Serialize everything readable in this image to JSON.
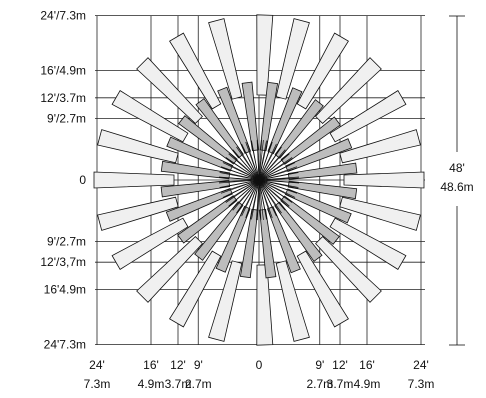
{
  "colors": {
    "line": "#111111",
    "grid": "#222222",
    "zone_outer": "#f0f0f0",
    "zone_inner": "#bdbdbd",
    "background": "#ffffff"
  },
  "y_labels": [
    {
      "text": "24'/7.3m",
      "ft": 24,
      "dir": -1
    },
    {
      "text": "16'/4.9m",
      "ft": 16,
      "dir": -1
    },
    {
      "text": "12'/3.7m",
      "ft": 12,
      "dir": -1
    },
    {
      "text": "9'/2.7m",
      "ft": 9,
      "dir": -1
    },
    {
      "text": "0",
      "ft": 0,
      "dir": 0
    },
    {
      "text": "9'/2.7m",
      "ft": 9,
      "dir": 1
    },
    {
      "text": "12'/3,7m",
      "ft": 12,
      "dir": 1
    },
    {
      "text": "16'4.9m",
      "ft": 16,
      "dir": 1
    },
    {
      "text": "24'7.3m",
      "ft": 24,
      "dir": 1
    }
  ],
  "x_labels": [
    {
      "ft_text": "24'",
      "m_text": "7.3m",
      "ft": 24,
      "dir": -1
    },
    {
      "ft_text": "16'",
      "m_text": "4.9m",
      "ft": 16,
      "dir": -1
    },
    {
      "ft_text": "12'",
      "m_text": "3.7m",
      "ft": 12,
      "dir": -1
    },
    {
      "ft_text": "9'",
      "m_text": "2.7m",
      "ft": 9,
      "dir": -1
    },
    {
      "ft_text": "0",
      "m_text": "",
      "ft": 0,
      "dir": 0
    },
    {
      "ft_text": "9'",
      "m_text": "2.7m",
      "ft": 9,
      "dir": 1
    },
    {
      "ft_text": "12'",
      "m_text": "3.7m",
      "ft": 12,
      "dir": 1
    },
    {
      "ft_text": "16'",
      "m_text": "4.9m",
      "ft": 16,
      "dir": 1
    },
    {
      "ft_text": "24'",
      "m_text": "7.3m",
      "ft": 24,
      "dir": 1
    }
  ],
  "range": {
    "top": "48'",
    "bottom": "48.6m"
  },
  "zones": {
    "outer_angles_deg": [
      0,
      15,
      30,
      45,
      60,
      75,
      88,
      105,
      120,
      135,
      150,
      165,
      180,
      195,
      210,
      225,
      240,
      255,
      272,
      285,
      300,
      315,
      330,
      345
    ],
    "inner_angles_deg": [
      7,
      22,
      37,
      52,
      67,
      82,
      97,
      112,
      127,
      142,
      157,
      172,
      187,
      202,
      217,
      232,
      247,
      262,
      277,
      292,
      307,
      322,
      337,
      352
    ]
  }
}
